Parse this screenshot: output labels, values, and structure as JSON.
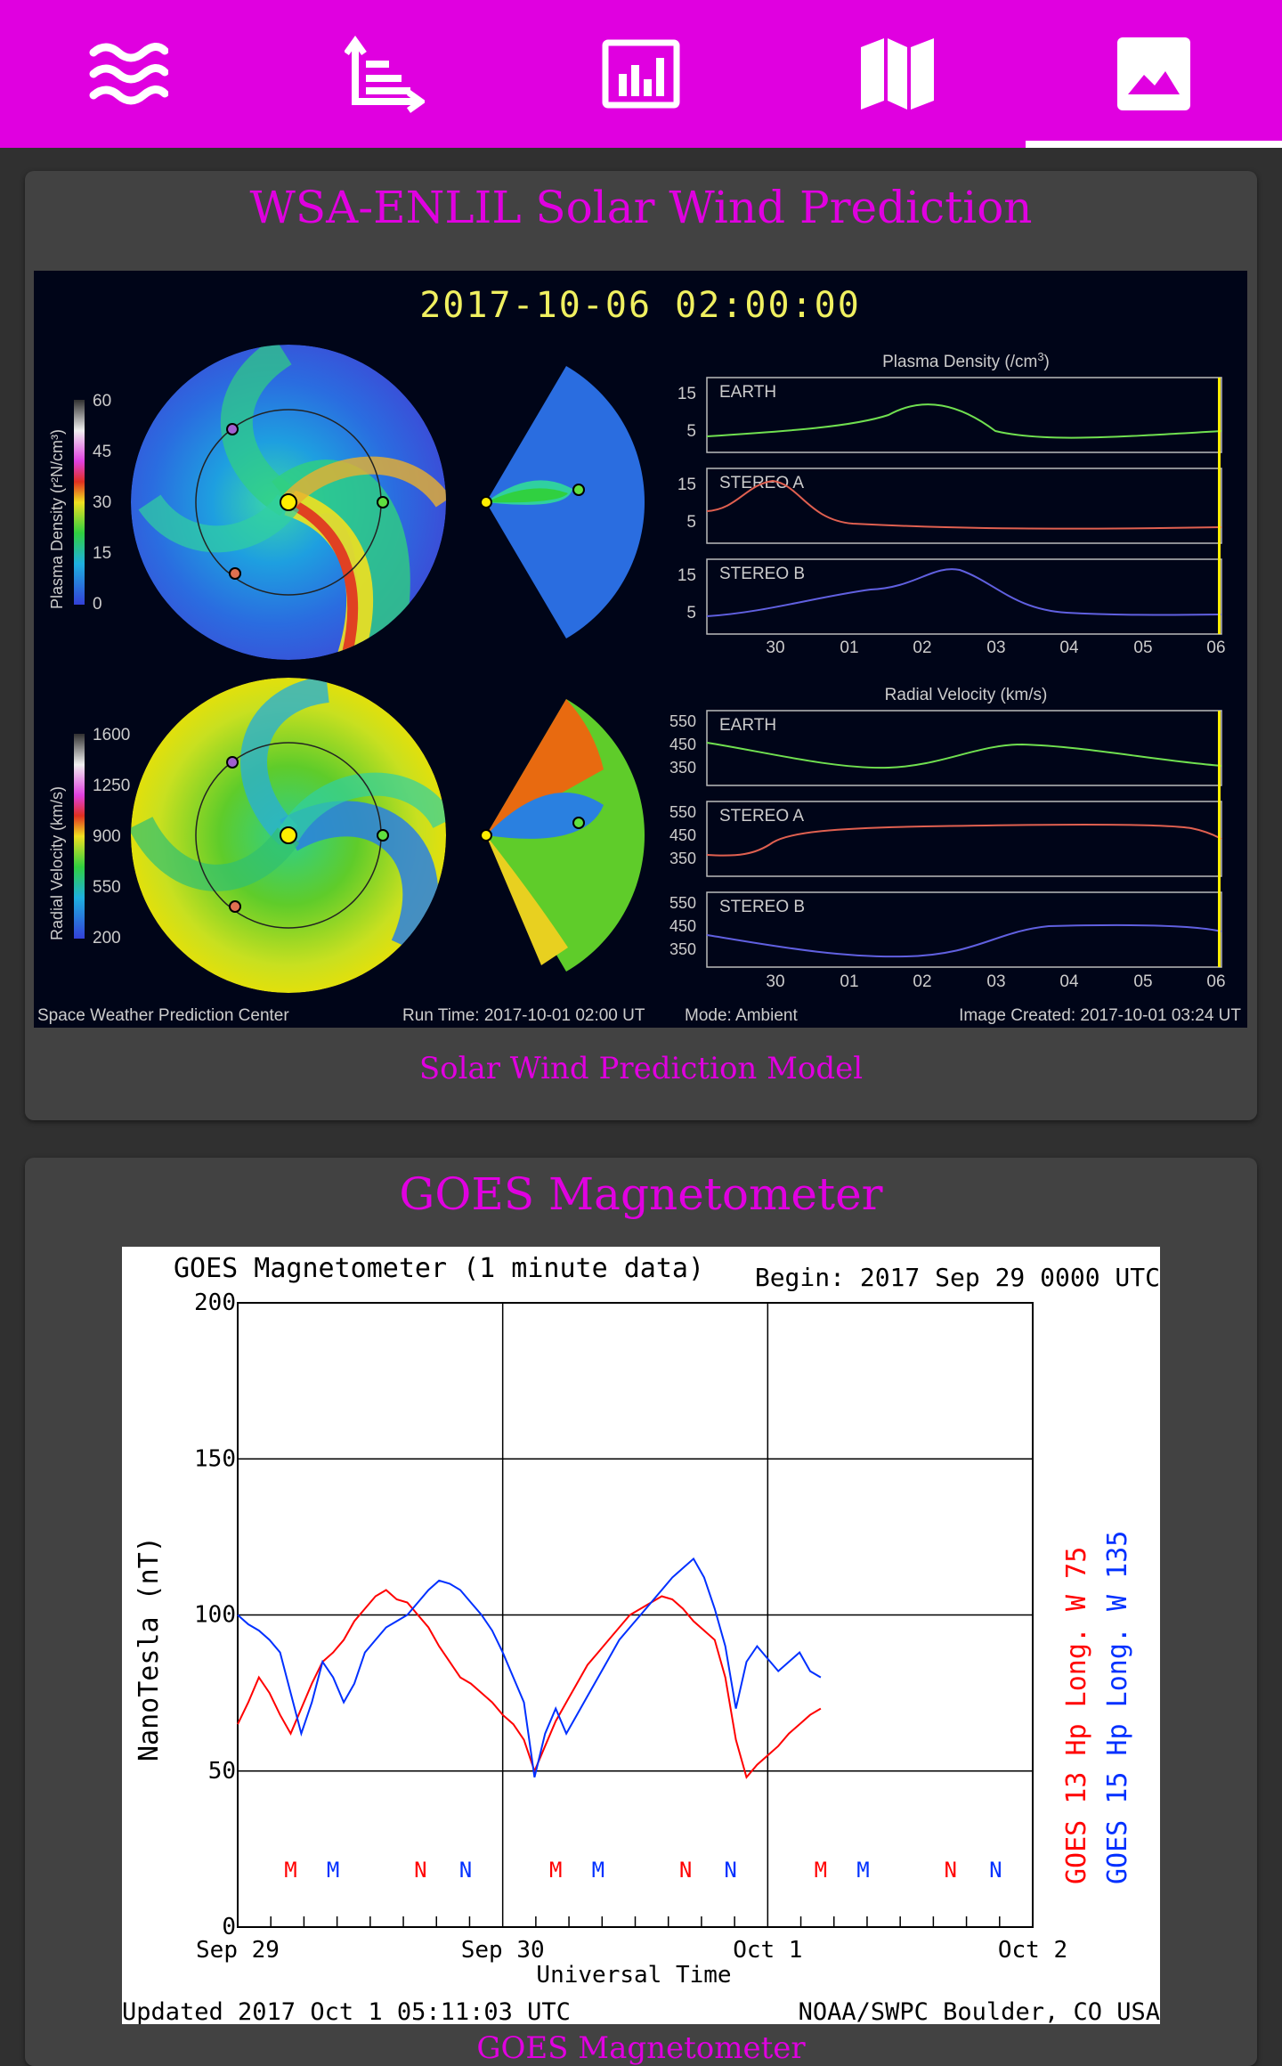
{
  "tabs": [
    {
      "icon": "waves-icon",
      "label": ""
    },
    {
      "icon": "axes-chart-icon",
      "label": ""
    },
    {
      "icon": "bar-chart-icon",
      "label": ""
    },
    {
      "icon": "map-icon",
      "label": ""
    },
    {
      "icon": "image-icon",
      "label": "",
      "active": true
    }
  ],
  "colors": {
    "accent": "#e000e0",
    "background": "#303030",
    "card": "#424242"
  },
  "enlil_card": {
    "title": "WSA-ENLIL Solar Wind Prediction",
    "caption": "Solar Wind Prediction Model",
    "image": {
      "timestamp": "2017-10-06  02:00:00",
      "density_title": "Plasma Density (/cm",
      "density_title_sup": "3",
      "density_title_end": ")",
      "velocity_title": "Radial Velocity (km/s)",
      "density_colorbar_label": "Plasma Density (r²N/cm³)",
      "velocity_colorbar_label": "Radial Velocity (km/s)",
      "density_colorbar_ticks": [
        "60",
        "45",
        "30",
        "15",
        "0"
      ],
      "velocity_colorbar_ticks": [
        "1600",
        "1250",
        "900",
        "550",
        "200"
      ],
      "density_panels": [
        {
          "name": "EARTH",
          "ticks": [
            "15",
            "5"
          ]
        },
        {
          "name": "STEREO A",
          "ticks": [
            "15",
            "5"
          ]
        },
        {
          "name": "STEREO B",
          "ticks": [
            "15",
            "5"
          ]
        }
      ],
      "velocity_panels": [
        {
          "name": "EARTH",
          "ticks": [
            "550",
            "450",
            "350"
          ]
        },
        {
          "name": "STEREO A",
          "ticks": [
            "550",
            "450",
            "350"
          ]
        },
        {
          "name": "STEREO B",
          "ticks": [
            "550",
            "450",
            "350"
          ]
        }
      ],
      "x_ticks": [
        "30",
        "01",
        "02",
        "03",
        "04",
        "05",
        "06"
      ],
      "footer_left": "Space Weather Prediction Center",
      "footer_run": "Run Time: 2017-10-01 02:00 UT",
      "footer_mode": "Mode: Ambient",
      "footer_created": "Image Created: 2017-10-01 03:24 UT"
    }
  },
  "goes_card": {
    "title": "GOES Magnetometer",
    "caption": "GOES Magnetometer",
    "image": {
      "header_left": "GOES Magnetometer (1 minute data)",
      "header_right": "Begin:  2017 Sep 29 0000 UTC",
      "ylabel": "NanoTesla (nT)",
      "xlabel": "Universal Time",
      "footer_left": "Updated 2017 Oct  1 05:11:03 UTC",
      "footer_right": "NOAA/SWPC Boulder, CO USA",
      "legend_red": "GOES 13 Hp   Long. W 75",
      "legend_blue": "GOES 15 Hp   Long. W 135",
      "markers": [
        "M",
        "M",
        "N",
        "N",
        "M",
        "M",
        "N",
        "N",
        "M",
        "M",
        "N",
        "N"
      ]
    }
  },
  "chart_data": {
    "type": "line",
    "title": "GOES Magnetometer (1 minute data)",
    "xlabel": "Universal Time",
    "ylabel": "NanoTesla (nT)",
    "ylim": [
      0,
      200
    ],
    "y_ticks": [
      "0",
      "50",
      "100",
      "150",
      "200"
    ],
    "x_ticks": [
      "Sep 29",
      "Sep 30",
      "Oct 1",
      "Oct 2"
    ],
    "xlim_days": [
      0,
      3
    ],
    "grid": true,
    "series": [
      {
        "name": "GOES 13 Hp   Long. W 75",
        "color": "#ff0000",
        "x": [
          0.0,
          0.04,
          0.08,
          0.12,
          0.16,
          0.2,
          0.24,
          0.28,
          0.32,
          0.36,
          0.4,
          0.44,
          0.48,
          0.52,
          0.56,
          0.6,
          0.64,
          0.68,
          0.72,
          0.76,
          0.8,
          0.84,
          0.88,
          0.92,
          0.96,
          1.0,
          1.04,
          1.08,
          1.12,
          1.16,
          1.2,
          1.24,
          1.28,
          1.32,
          1.36,
          1.4,
          1.44,
          1.48,
          1.52,
          1.56,
          1.6,
          1.64,
          1.68,
          1.72,
          1.76,
          1.8,
          1.84,
          1.88,
          1.92,
          1.96,
          2.0,
          2.04,
          2.08,
          2.12,
          2.16,
          2.2
        ],
        "values": [
          65,
          72,
          80,
          75,
          68,
          62,
          70,
          78,
          85,
          88,
          92,
          98,
          102,
          106,
          108,
          105,
          104,
          100,
          96,
          90,
          85,
          80,
          78,
          75,
          72,
          68,
          65,
          60,
          50,
          58,
          66,
          72,
          78,
          84,
          88,
          92,
          96,
          100,
          102,
          104,
          106,
          105,
          102,
          98,
          95,
          92,
          80,
          60,
          48,
          52,
          55,
          58,
          62,
          65,
          68,
          70
        ]
      },
      {
        "name": "GOES 15 Hp   Long. W 135",
        "color": "#0030ff",
        "x": [
          0.0,
          0.04,
          0.08,
          0.12,
          0.16,
          0.2,
          0.24,
          0.28,
          0.32,
          0.36,
          0.4,
          0.44,
          0.48,
          0.52,
          0.56,
          0.6,
          0.64,
          0.68,
          0.72,
          0.76,
          0.8,
          0.84,
          0.88,
          0.92,
          0.96,
          1.0,
          1.04,
          1.08,
          1.12,
          1.16,
          1.2,
          1.24,
          1.28,
          1.32,
          1.36,
          1.4,
          1.44,
          1.48,
          1.52,
          1.56,
          1.6,
          1.64,
          1.68,
          1.72,
          1.76,
          1.8,
          1.84,
          1.88,
          1.92,
          1.96,
          2.0,
          2.04,
          2.08,
          2.12,
          2.16,
          2.2
        ],
        "values": [
          100,
          97,
          95,
          92,
          88,
          75,
          62,
          72,
          85,
          80,
          72,
          78,
          88,
          92,
          96,
          98,
          100,
          104,
          108,
          111,
          110,
          108,
          104,
          100,
          95,
          88,
          80,
          72,
          48,
          62,
          70,
          62,
          68,
          74,
          80,
          86,
          92,
          96,
          100,
          104,
          108,
          112,
          115,
          118,
          112,
          102,
          90,
          70,
          85,
          90,
          86,
          82,
          85,
          88,
          82,
          80
        ]
      }
    ]
  }
}
